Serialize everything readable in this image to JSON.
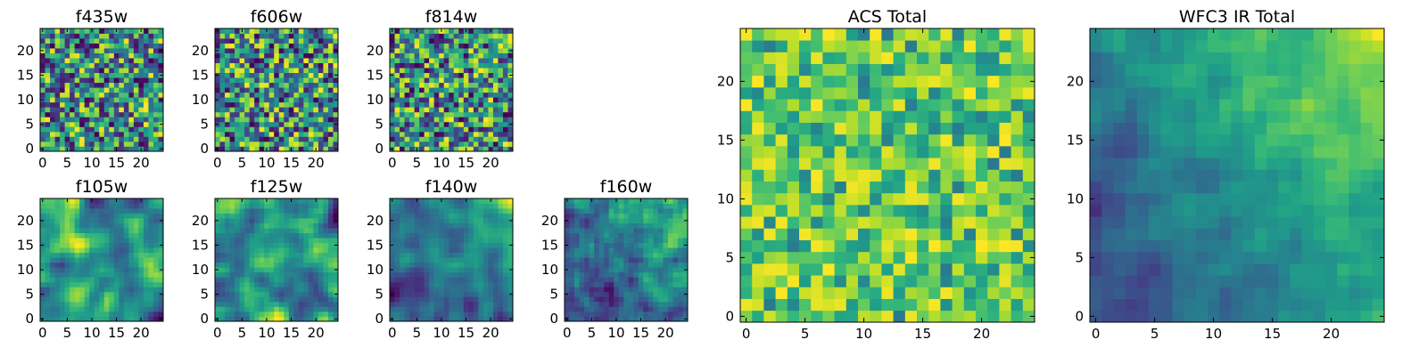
{
  "chart_data": [
    {
      "id": "f435w",
      "type": "heatmap",
      "title": "f435w",
      "size": 25,
      "xticks": [
        "0",
        "5",
        "10",
        "15",
        "20"
      ],
      "yticks": [
        "0",
        "5",
        "10",
        "15",
        "20"
      ],
      "colormap": "viridis",
      "seed": 11,
      "smooth": 0,
      "bias": "none"
    },
    {
      "id": "f606w",
      "type": "heatmap",
      "title": "f606w",
      "size": 25,
      "xticks": [
        "0",
        "5",
        "10",
        "15",
        "20"
      ],
      "yticks": [
        "0",
        "5",
        "10",
        "15",
        "20"
      ],
      "colormap": "viridis",
      "seed": 23,
      "smooth": 0,
      "bias": "none"
    },
    {
      "id": "f814w",
      "type": "heatmap",
      "title": "f814w",
      "size": 25,
      "xticks": [
        "0",
        "5",
        "10",
        "15",
        "20"
      ],
      "yticks": [
        "0",
        "5",
        "10",
        "15",
        "20"
      ],
      "colormap": "viridis",
      "seed": 37,
      "smooth": 0,
      "bias": "none"
    },
    {
      "id": "f105w",
      "type": "heatmap",
      "title": "f105w",
      "size": 25,
      "xticks": [
        "0",
        "5",
        "10",
        "15",
        "20"
      ],
      "yticks": [
        "0",
        "5",
        "10",
        "15",
        "20"
      ],
      "colormap": "viridis",
      "seed": 41,
      "smooth": 2,
      "bias": "none"
    },
    {
      "id": "f125w",
      "type": "heatmap",
      "title": "f125w",
      "size": 25,
      "xticks": [
        "0",
        "5",
        "10",
        "15",
        "20"
      ],
      "yticks": [
        "0",
        "5",
        "10",
        "15",
        "20"
      ],
      "colormap": "viridis",
      "seed": 53,
      "smooth": 2,
      "bias": "none"
    },
    {
      "id": "f140w",
      "type": "heatmap",
      "title": "f140w",
      "size": 25,
      "xticks": [
        "0",
        "5",
        "10",
        "15",
        "20"
      ],
      "yticks": [
        "0",
        "5",
        "10",
        "15",
        "20"
      ],
      "colormap": "viridis",
      "seed": 67,
      "smooth": 2,
      "bias": "corner"
    },
    {
      "id": "f160w",
      "type": "heatmap",
      "title": "f160w",
      "size": 25,
      "xticks": [
        "0",
        "5",
        "10",
        "15",
        "20"
      ],
      "yticks": [
        "0",
        "5",
        "10",
        "15",
        "20"
      ],
      "colormap": "viridis",
      "seed": 79,
      "smooth": 1,
      "bias": "corner"
    },
    {
      "id": "acs_total",
      "type": "heatmap",
      "title": "ACS Total",
      "size": 25,
      "xticks": [
        "0",
        "5",
        "10",
        "15",
        "20"
      ],
      "yticks": [
        "0",
        "5",
        "10",
        "15",
        "20"
      ],
      "colormap": "viridis",
      "seed": 97,
      "smooth": 0,
      "bias": "high"
    },
    {
      "id": "wfc3_ir_total",
      "type": "heatmap",
      "title": "WFC3 IR Total",
      "size": 25,
      "xticks": [
        "0",
        "5",
        "10",
        "15",
        "20"
      ],
      "yticks": [
        "0",
        "5",
        "10",
        "15",
        "20"
      ],
      "colormap": "viridis",
      "seed": 113,
      "smooth": 1,
      "bias": "gradient"
    }
  ]
}
